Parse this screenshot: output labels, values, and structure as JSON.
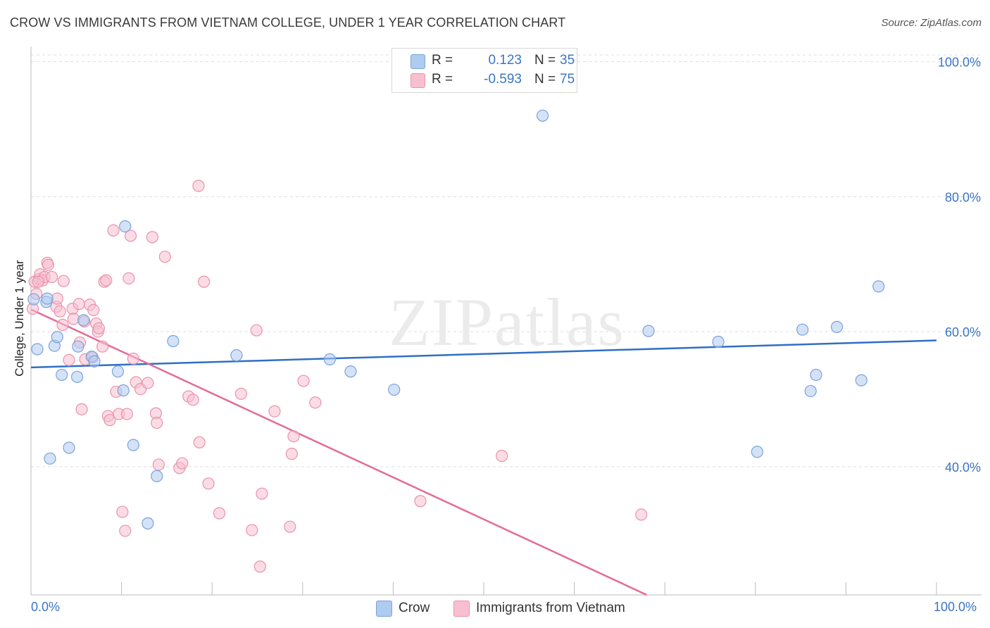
{
  "title": "CROW VS IMMIGRANTS FROM VIETNAM COLLEGE, UNDER 1 YEAR CORRELATION CHART",
  "source": "Source: ZipAtlas.com",
  "watermark": "ZIPatlas",
  "legend": {
    "r_label": "R =",
    "n_label": "N =",
    "rows": [
      {
        "r": "0.123",
        "n": "35",
        "color": "#aecbf0",
        "border": "#7ba3d9"
      },
      {
        "r": "-0.593",
        "n": "75",
        "color": "#f8bfd0",
        "border": "#e893ad"
      }
    ]
  },
  "bottom_legend": [
    "Crow",
    "Immigrants from Vietnam"
  ],
  "chart_data": {
    "type": "scatter",
    "title": "CROW VS IMMIGRANTS FROM VIETNAM COLLEGE, UNDER 1 YEAR CORRELATION CHART",
    "xlabel": "",
    "ylabel": "College, Under 1 year",
    "xlim": [
      0,
      100
    ],
    "ylim": [
      21,
      101
    ],
    "x_tick_labels": [
      "0.0%",
      "100.0%"
    ],
    "y_ticks": [
      {
        "value": 40,
        "label": "40.0%"
      },
      {
        "value": 60,
        "label": "60.0%"
      },
      {
        "value": 80,
        "label": "80.0%"
      },
      {
        "value": 100,
        "label": "100.0%"
      }
    ],
    "series": [
      {
        "name": "Crow",
        "color": "#aecbf0",
        "stroke": "#7ba3d9",
        "line_color": "#2f6fc6",
        "trend": {
          "x": [
            0,
            100
          ],
          "y": [
            54.7,
            58.7
          ]
        },
        "points": [
          [
            0.3,
            64.8
          ],
          [
            0.7,
            57.4
          ],
          [
            1.7,
            64.4
          ],
          [
            1.8,
            64.9
          ],
          [
            2.6,
            57.9
          ],
          [
            2.9,
            59.2
          ],
          [
            3.4,
            53.6
          ],
          [
            4.2,
            42.8
          ],
          [
            5.1,
            53.3
          ],
          [
            5.2,
            57.8
          ],
          [
            5.8,
            61.7
          ],
          [
            6.7,
            56.3
          ],
          [
            7.0,
            55.6
          ],
          [
            9.6,
            54.1
          ],
          [
            10.2,
            51.3
          ],
          [
            10.4,
            75.6
          ],
          [
            11.3,
            43.2
          ],
          [
            12.9,
            31.6
          ],
          [
            13.9,
            38.6
          ],
          [
            15.7,
            58.6
          ],
          [
            22.7,
            56.5
          ],
          [
            33.0,
            55.9
          ],
          [
            35.3,
            54.1
          ],
          [
            40.1,
            51.4
          ],
          [
            56.5,
            92.0
          ],
          [
            68.2,
            60.1
          ],
          [
            75.9,
            58.5
          ],
          [
            80.2,
            42.2
          ],
          [
            85.2,
            60.3
          ],
          [
            86.1,
            51.2
          ],
          [
            86.7,
            53.6
          ],
          [
            89.0,
            60.7
          ],
          [
            91.7,
            52.8
          ],
          [
            93.6,
            66.7
          ],
          [
            2.1,
            41.2
          ]
        ]
      },
      {
        "name": "Immigrants from Vietnam",
        "color": "#f8bfd0",
        "stroke": "#e893ad",
        "line_color": "#e46b96",
        "trend": {
          "x": [
            0,
            68
          ],
          "y": [
            63.3,
            21.0
          ]
        },
        "points": [
          [
            0.2,
            63.4
          ],
          [
            0.4,
            67.4
          ],
          [
            0.6,
            65.6
          ],
          [
            0.9,
            67.8
          ],
          [
            1.0,
            68.5
          ],
          [
            1.3,
            67.6
          ],
          [
            1.5,
            68.1
          ],
          [
            1.8,
            70.2
          ],
          [
            1.9,
            69.9
          ],
          [
            2.3,
            68.1
          ],
          [
            2.8,
            63.7
          ],
          [
            2.9,
            64.9
          ],
          [
            3.2,
            63.0
          ],
          [
            3.5,
            61.0
          ],
          [
            3.6,
            67.5
          ],
          [
            4.2,
            55.8
          ],
          [
            4.6,
            63.4
          ],
          [
            4.7,
            61.9
          ],
          [
            5.3,
            64.1
          ],
          [
            5.4,
            58.4
          ],
          [
            5.6,
            48.5
          ],
          [
            5.9,
            61.5
          ],
          [
            6.0,
            55.9
          ],
          [
            6.5,
            64.0
          ],
          [
            6.8,
            56.2
          ],
          [
            6.9,
            63.2
          ],
          [
            7.2,
            61.2
          ],
          [
            7.4,
            60.0
          ],
          [
            7.5,
            60.5
          ],
          [
            7.9,
            57.8
          ],
          [
            8.1,
            67.4
          ],
          [
            8.3,
            67.6
          ],
          [
            8.5,
            47.5
          ],
          [
            8.7,
            46.9
          ],
          [
            9.1,
            75.0
          ],
          [
            9.4,
            51.1
          ],
          [
            9.7,
            47.8
          ],
          [
            10.1,
            33.3
          ],
          [
            10.4,
            30.5
          ],
          [
            10.6,
            47.8
          ],
          [
            10.8,
            67.9
          ],
          [
            11.0,
            74.2
          ],
          [
            11.3,
            56.0
          ],
          [
            11.6,
            52.5
          ],
          [
            12.1,
            51.5
          ],
          [
            12.9,
            52.4
          ],
          [
            13.4,
            74.0
          ],
          [
            13.8,
            47.9
          ],
          [
            13.9,
            46.5
          ],
          [
            14.1,
            40.3
          ],
          [
            14.8,
            71.1
          ],
          [
            16.4,
            39.8
          ],
          [
            16.7,
            40.5
          ],
          [
            17.4,
            50.4
          ],
          [
            17.9,
            49.9
          ],
          [
            18.5,
            81.6
          ],
          [
            18.6,
            43.6
          ],
          [
            19.1,
            67.4
          ],
          [
            19.6,
            37.5
          ],
          [
            20.8,
            33.1
          ],
          [
            23.2,
            50.8
          ],
          [
            24.4,
            30.6
          ],
          [
            24.9,
            60.2
          ],
          [
            25.3,
            25.2
          ],
          [
            25.5,
            36.0
          ],
          [
            26.9,
            48.2
          ],
          [
            28.6,
            31.1
          ],
          [
            28.8,
            41.9
          ],
          [
            29.0,
            44.5
          ],
          [
            30.1,
            52.7
          ],
          [
            31.4,
            49.5
          ],
          [
            43.0,
            34.9
          ],
          [
            52.0,
            41.6
          ],
          [
            67.4,
            32.9
          ],
          [
            0.8,
            67.4
          ]
        ]
      }
    ]
  }
}
